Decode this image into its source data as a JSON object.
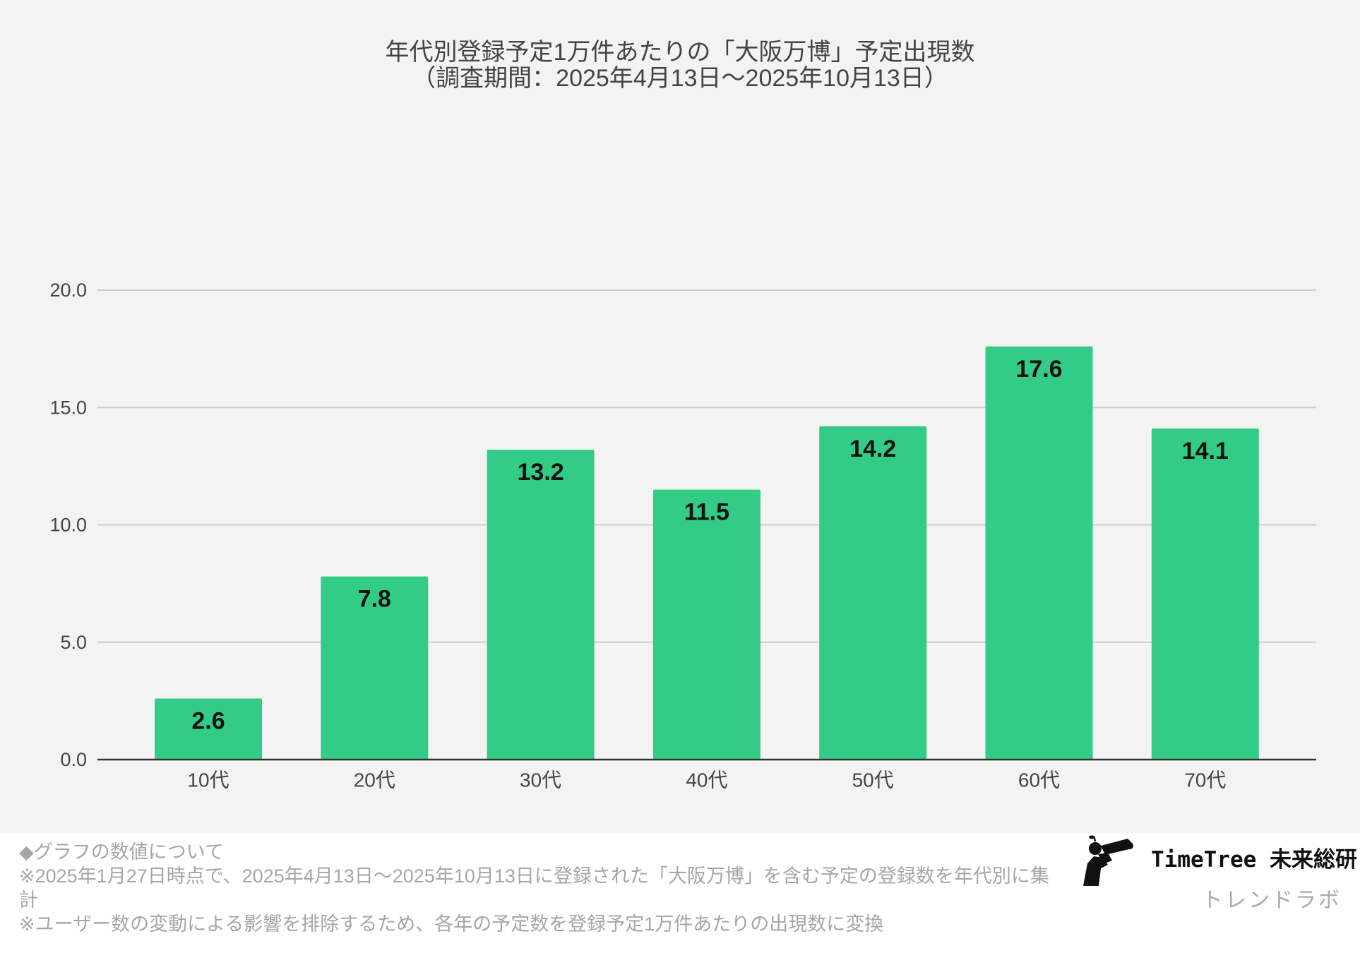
{
  "chart_data": {
    "type": "bar",
    "title": "年代別登録予定1万件あたりの「大阪万博」予定出現数",
    "subtitle": "（調査期間：2025年4月13日〜2025年10月13日）",
    "categories": [
      "10代",
      "20代",
      "30代",
      "40代",
      "50代",
      "60代",
      "70代"
    ],
    "values": [
      2.6,
      7.8,
      13.2,
      11.5,
      14.2,
      17.6,
      14.1
    ],
    "y_ticks": [
      "0.0",
      "5.0",
      "10.0",
      "15.0",
      "20.0"
    ],
    "ylim": [
      0,
      20
    ],
    "xlabel": "",
    "ylabel": "",
    "grid": true,
    "legend": "none",
    "data_labels": "inside-top",
    "bar_color": "#33cc87"
  },
  "notes": {
    "heading": "◆グラフの数値について",
    "line1": "※2025年1月27日時点で、2025年4月13日〜2025年10月13日に登録された「大阪万博」を含む予定の登録数を年代別に集計",
    "line2": "※ユーザー数の変動による影響を排除するため、各年の予定数を登録予定1万件あたりの出現数に変換"
  },
  "brand": {
    "name": "TimeTree 未来総研",
    "sub": "トレンドラボ",
    "icon": "person-with-binoculars-icon"
  },
  "colors": {
    "chart_background": "#f3f3f3",
    "gridline": "#cccccc",
    "baseline": "#333333",
    "axis_text": "#444444",
    "data_label": "#111111",
    "note_text": "#a6a6a6"
  }
}
